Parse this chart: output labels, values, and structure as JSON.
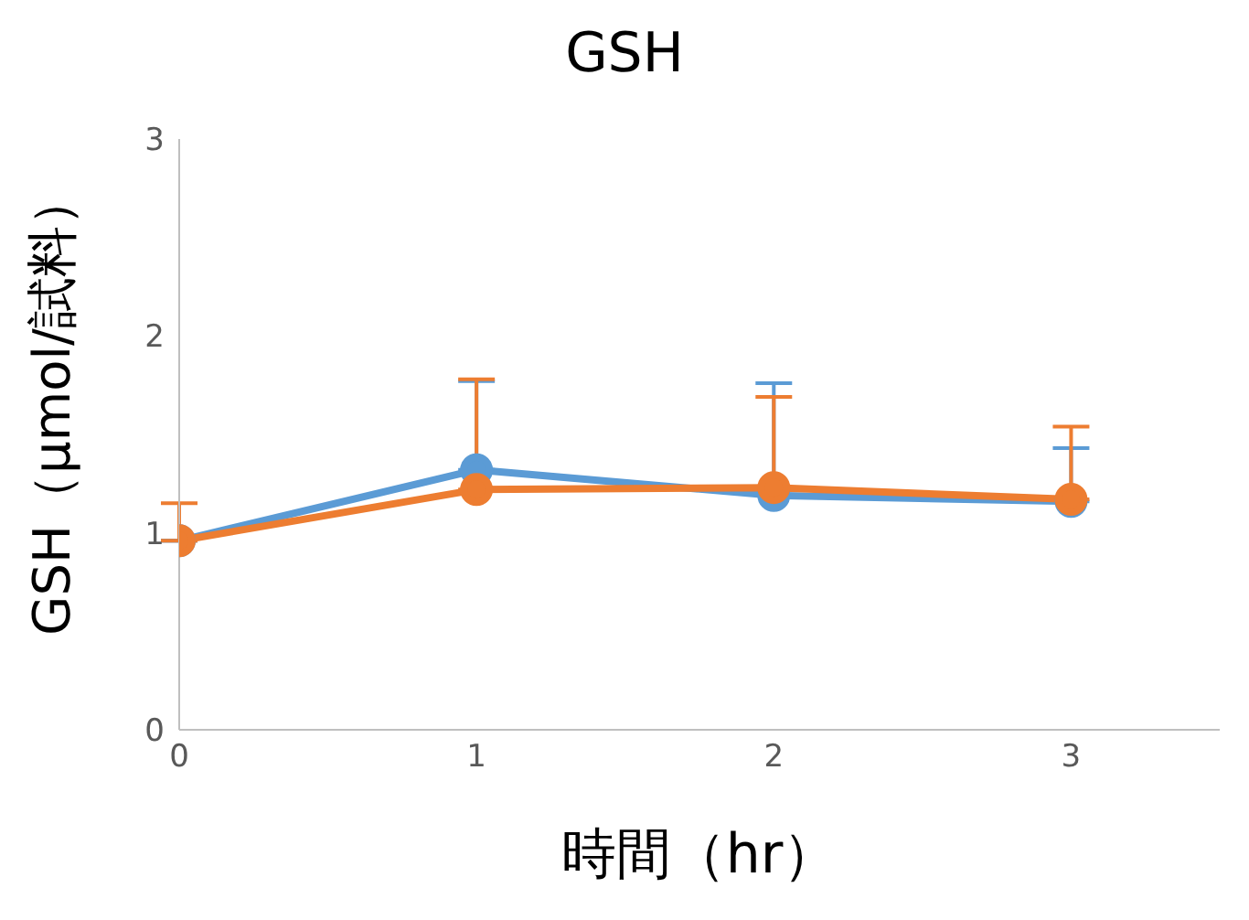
{
  "chart_data": {
    "type": "line",
    "title": "GSH",
    "xlabel": "時間（hr）",
    "ylabel": "GSH（μmol/試料）",
    "x": [
      0,
      1,
      2,
      3
    ],
    "series": [
      {
        "color": "#5b9bd5",
        "values": [
          0.96,
          1.32,
          1.19,
          1.16
        ],
        "errors": [
          null,
          [
            1.32,
            1.77
          ],
          [
            1.19,
            1.76
          ],
          [
            1.16,
            1.43
          ]
        ]
      },
      {
        "color": "#ed7d31",
        "values": [
          0.96,
          1.22,
          1.23,
          1.17
        ],
        "errors": [
          [
            0.96,
            1.15
          ],
          [
            1.22,
            1.78
          ],
          [
            1.23,
            1.69
          ],
          [
            1.17,
            1.54
          ]
        ]
      }
    ],
    "xlim": [
      0,
      3.5
    ],
    "xticks": [
      0,
      1,
      2,
      3
    ],
    "ylim": [
      0,
      3
    ],
    "yticks": [
      0,
      1,
      2,
      3
    ],
    "grid": false,
    "legend": false,
    "marker": "circle",
    "line_style": "solid"
  }
}
